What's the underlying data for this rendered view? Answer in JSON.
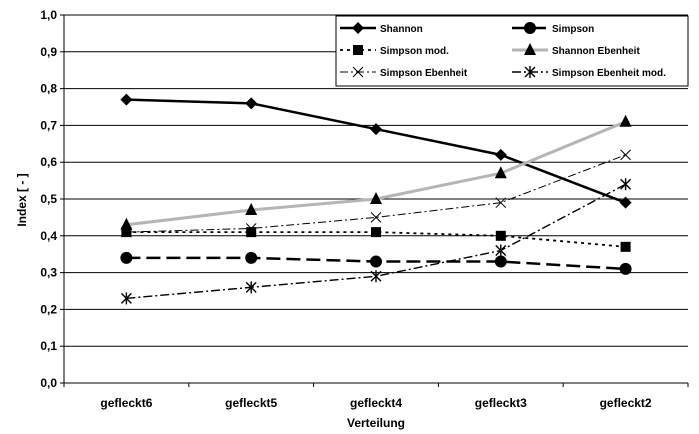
{
  "chart_data": {
    "type": "line",
    "title": "",
    "xlabel": "Verteilung",
    "ylabel": "Index [ - ]",
    "ylim": [
      0,
      1
    ],
    "ytick_labels": [
      "0,0",
      "0,1",
      "0,2",
      "0,3",
      "0,4",
      "0,5",
      "0,6",
      "0,7",
      "0,8",
      "0,9",
      "1,0"
    ],
    "categories": [
      "gefleckt6",
      "gefleckt5",
      "gefleckt4",
      "gefleckt3",
      "gefleckt2"
    ],
    "grid": "horizontal",
    "legend_position": "top-right",
    "series": [
      {
        "name": "Shannon",
        "values": [
          0.77,
          0.76,
          0.69,
          0.62,
          0.49
        ],
        "marker": "diamond",
        "line": "solid",
        "color": "#000000"
      },
      {
        "name": "Simpson",
        "values": [
          0.34,
          0.34,
          0.33,
          0.33,
          0.31
        ],
        "marker": "circle",
        "line": "long-dash",
        "color": "#000000"
      },
      {
        "name": "Simpson mod.",
        "values": [
          0.41,
          0.41,
          0.41,
          0.4,
          0.37
        ],
        "marker": "square",
        "line": "dotted",
        "color": "#000000"
      },
      {
        "name": "Shannon Ebenheit",
        "values": [
          0.43,
          0.47,
          0.5,
          0.57,
          0.71
        ],
        "marker": "triangle",
        "line": "grey-thick",
        "color": "#b0b0b0"
      },
      {
        "name": "Simpson Ebenheit",
        "values": [
          0.41,
          0.42,
          0.45,
          0.49,
          0.62
        ],
        "marker": "x",
        "line": "dash-dot",
        "color": "#000000"
      },
      {
        "name": "Simpson Ebenheit mod.",
        "values": [
          0.23,
          0.26,
          0.29,
          0.36,
          0.54
        ],
        "marker": "star",
        "line": "dash-dot-bold",
        "color": "#000000"
      }
    ]
  }
}
